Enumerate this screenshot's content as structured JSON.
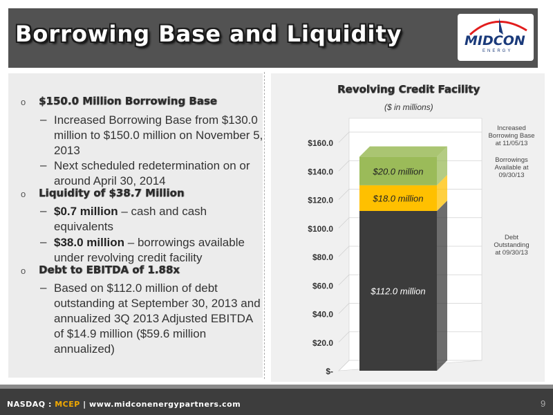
{
  "header": {
    "title": "Borrowing Base and Liquidity",
    "logo_text": "MIDCON",
    "logo_sub": "ENERGY"
  },
  "bullets": [
    {
      "heading": "$150.0 Million Borrowing Base",
      "items": [
        {
          "bold": "",
          "text": "Increased Borrowing Base from $130.0 million to $150.0 million on November 5, 2013"
        },
        {
          "bold": "",
          "text": "Next scheduled redetermination on or around April 30, 2014"
        }
      ]
    },
    {
      "heading": "Liquidity of $38.7 Million",
      "items": [
        {
          "bold": "$0.7 million",
          "text": " – cash and cash equivalents"
        },
        {
          "bold": "$38.0 million",
          "text": " – borrowings available under revolving credit facility"
        }
      ]
    },
    {
      "heading": "Debt to EBITDA of 1.88x",
      "items": [
        {
          "bold": "",
          "text": "Based on $112.0 million of debt outstanding at September 30, 2013 and annualized 3Q 2013 Adjusted EBITDA of $14.9 million ($59.6 million annualized)"
        }
      ]
    }
  ],
  "chart_data": {
    "type": "bar",
    "stacked": true,
    "title": "Revolving Credit Facility",
    "subtitle": "($ in millions)",
    "categories": [
      ""
    ],
    "ylim": [
      0,
      160
    ],
    "yticks": [
      "$-",
      "$20.0",
      "$40.0",
      "$60.0",
      "$80.0",
      "$100.0",
      "$120.0",
      "$140.0",
      "$160.0"
    ],
    "grid": true,
    "series": [
      {
        "name": "Debt Outstanding at 09/30/13",
        "values": [
          112.0
        ],
        "label": "$112.0 million",
        "color": "#3c3c3c"
      },
      {
        "name": "Borrowings Available at 09/30/13",
        "values": [
          18.0
        ],
        "label": "$18.0 million",
        "color": "#ffc000"
      },
      {
        "name": "Increased Borrowing Base at 11/05/13",
        "values": [
          20.0
        ],
        "label": "$20.0 million",
        "color": "#9bbb59"
      }
    ],
    "legend_lines": [
      [
        "Increased",
        "Borrowing Base",
        "at 11/05/13"
      ],
      [
        "Borrowings",
        "Available at",
        "09/30/13"
      ],
      [
        "Debt",
        "Outstanding",
        "at 09/30/13"
      ]
    ]
  },
  "footer": {
    "exchange": "NASDAQ : ",
    "ticker": "MCEP",
    "separator": " | ",
    "website": "www.midconenergypartners.com",
    "page": "9"
  }
}
